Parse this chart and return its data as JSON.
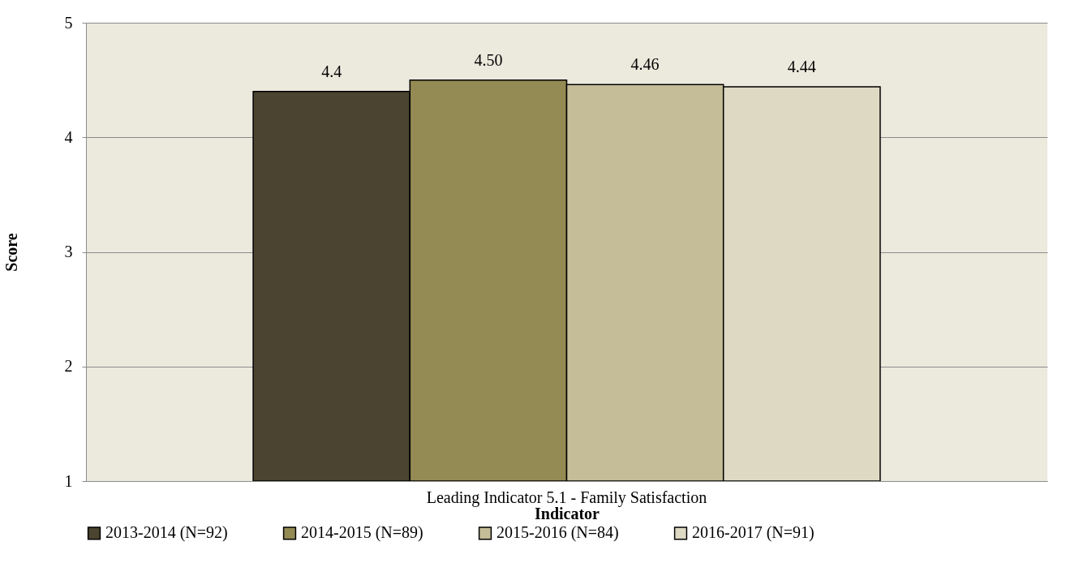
{
  "chart_data": {
    "type": "bar",
    "xlabel": "Indicator",
    "ylabel": "Score",
    "categories": [
      "Leading Indicator 5.1 - Family Satisfaction"
    ],
    "series": [
      {
        "name": "2013-2014  (N=92)",
        "color": "#4a4430",
        "values": [
          4.4
        ],
        "value_labels": [
          "4.4"
        ]
      },
      {
        "name": "2014-2015  (N=89)",
        "color": "#948a54",
        "values": [
          4.5
        ],
        "value_labels": [
          "4.50"
        ]
      },
      {
        "name": "2015-2016  (N=84)",
        "color": "#c4bd97",
        "values": [
          4.46
        ],
        "value_labels": [
          "4.46"
        ]
      },
      {
        "name": "2016-2017  (N=91)",
        "color": "#ddd9c3",
        "values": [
          4.44
        ],
        "value_labels": [
          "4.44"
        ]
      }
    ],
    "ylim": [
      1,
      5
    ],
    "yticks": [
      1,
      2,
      3,
      4,
      5
    ],
    "grid": "y",
    "legend": "bottom"
  }
}
